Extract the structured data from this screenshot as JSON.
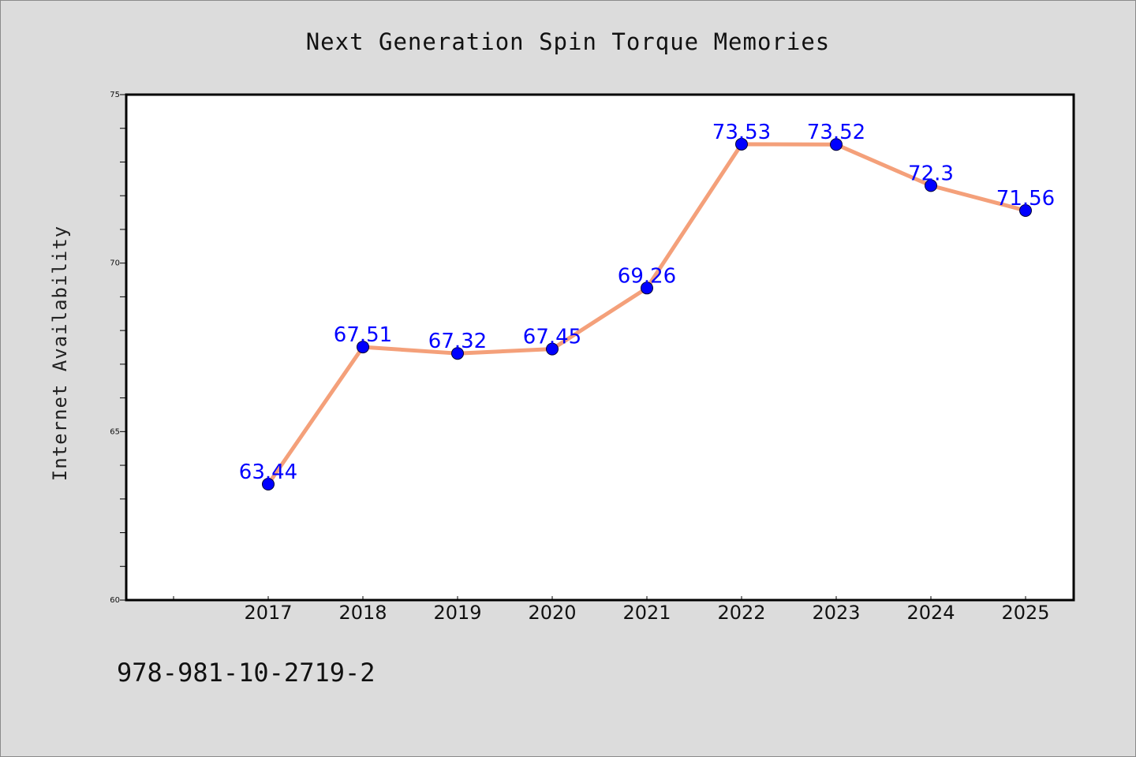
{
  "chart_data": {
    "type": "line",
    "title": "Next Generation Spin Torque Memories",
    "xlabel": "",
    "ylabel": "Internet Availability",
    "categories": [
      "2017",
      "2018",
      "2019",
      "2020",
      "2021",
      "2022",
      "2023",
      "2024",
      "2025"
    ],
    "series": [
      {
        "values": [
          63.44,
          67.51,
          67.32,
          67.45,
          69.26,
          73.53,
          73.52,
          72.3,
          71.56
        ],
        "labels": [
          "63.44",
          "67.51",
          "67.32",
          "67.45",
          "69.26",
          "73.53",
          "73.52",
          "72.3",
          "71.56"
        ]
      }
    ],
    "ylim": [
      60,
      75
    ],
    "yticks": [
      60,
      65,
      70,
      75
    ],
    "ytick_labels": [
      "60",
      "65",
      "70",
      "75"
    ],
    "grid": false,
    "legend": "none",
    "colors": {
      "line": "#f4a07a",
      "marker": "#0000ff",
      "data_label": "#0000ff",
      "background": "#dcdcdc",
      "plot_background": "#ffffff"
    }
  },
  "footer": {
    "isbn": "978-981-10-2719-2"
  }
}
